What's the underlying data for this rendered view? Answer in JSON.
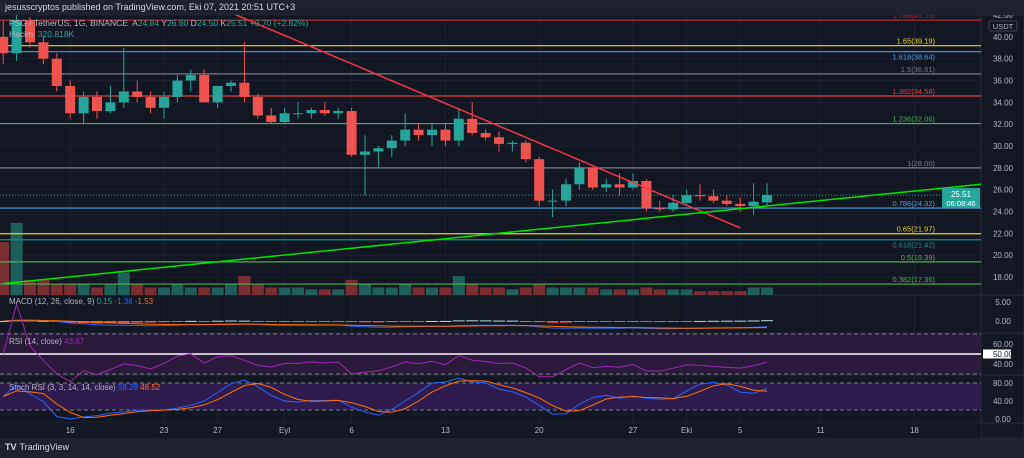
{
  "header": {
    "published": "jesusscryptos published on TradingView.com, Eki 07, 2021 20:51 UTC+3"
  },
  "legend": {
    "symbol": "PSG / TetherUS, 1G, BINANCE",
    "o_label": "A",
    "o": "24.84",
    "h_label": "Y",
    "h": "26.60",
    "l_label": "D",
    "l": "24.50",
    "c_label": "K",
    "c": "25.51",
    "change": "+0.70 (+2.82%)",
    "volume_label": "Hacim",
    "volume": "320.818K"
  },
  "indicators": {
    "macd": {
      "label": "MACD (12, 26, close, 9)",
      "v1": "0.15",
      "v2": "-1.38",
      "v3": "-1.53"
    },
    "rsi": {
      "label": "RSI (14, close)",
      "v": "43.67"
    },
    "stoch": {
      "label": "Stoch RSI (3, 3, 14, 14, close)",
      "k": "59.28",
      "d": "48.52"
    }
  },
  "footer": {
    "brand": "TradingView"
  },
  "colors": {
    "bg": "#131722",
    "up": "#26a69a",
    "down": "#ef5350",
    "red_line": "#f23645",
    "green_line": "#00e600"
  },
  "chart_data": {
    "type": "candlestick",
    "title": "PSG / TetherUS, 1G, BINANCE",
    "currency_label": "USDT",
    "ylim": [
      16.5,
      42.2
    ],
    "price_ticks": [
      "42.00",
      "40.00",
      "38.00",
      "36.00",
      "34.00",
      "32.00",
      "30.00",
      "28.00",
      "26.00",
      "24.00",
      "22.00",
      "20.00",
      "18.00"
    ],
    "last_price": "25.51",
    "countdown": "06:08:46",
    "x_ticks": [
      {
        "label": "16",
        "i": 5
      },
      {
        "label": "23",
        "i": 12
      },
      {
        "label": "27",
        "i": 16
      },
      {
        "label": "Eyl",
        "i": 21
      },
      {
        "label": "6",
        "i": 26
      },
      {
        "label": "13",
        "i": 33
      },
      {
        "label": "20",
        "i": 40
      },
      {
        "label": "27",
        "i": 47
      },
      {
        "label": "Eki",
        "i": 51
      },
      {
        "label": "5",
        "i": 55
      },
      {
        "label": "11",
        "i": 61
      },
      {
        "label": "18",
        "i": 68
      }
    ],
    "ohlc": [
      [
        40,
        41.5,
        37.5,
        38.5
      ],
      [
        38.5,
        42,
        37.8,
        41.5
      ],
      [
        41.5,
        41.8,
        39,
        39.5
      ],
      [
        39.5,
        40,
        37.5,
        38
      ],
      [
        38,
        38.5,
        35,
        35.5
      ],
      [
        35.5,
        36,
        32.5,
        33
      ],
      [
        33,
        35,
        32,
        34.5
      ],
      [
        34.5,
        35,
        32.5,
        33.2
      ],
      [
        33.2,
        35.5,
        33,
        34
      ],
      [
        34,
        39,
        33.5,
        35
      ],
      [
        35,
        36,
        34,
        34.5
      ],
      [
        34.5,
        35,
        33,
        33.5
      ],
      [
        33.5,
        35,
        32.5,
        34.5
      ],
      [
        34.5,
        36.5,
        34,
        36
      ],
      [
        36,
        37,
        35,
        36.5
      ],
      [
        36.5,
        37,
        34,
        34
      ],
      [
        34,
        35.5,
        33.5,
        35.5
      ],
      [
        35.5,
        36,
        35,
        35.8
      ],
      [
        35.8,
        39.5,
        34,
        34.5
      ],
      [
        34.5,
        34.8,
        32.5,
        32.8
      ],
      [
        32.8,
        33.5,
        32,
        32.2
      ],
      [
        32.2,
        33.5,
        32,
        33
      ],
      [
        33,
        34,
        32.5,
        33
      ],
      [
        33,
        33.5,
        32.5,
        33.3
      ],
      [
        33.3,
        34,
        32.8,
        33
      ],
      [
        33,
        33.5,
        32.5,
        33.2
      ],
      [
        33.2,
        33.5,
        29,
        29.2
      ],
      [
        29.2,
        31,
        25.5,
        29.5
      ],
      [
        29.5,
        30,
        28,
        29.8
      ],
      [
        29.8,
        31,
        29,
        30.5
      ],
      [
        30.5,
        33,
        30,
        31.5
      ],
      [
        31.5,
        32,
        30.5,
        31
      ],
      [
        31,
        32,
        30,
        31.5
      ],
      [
        31.5,
        32,
        30,
        30.5
      ],
      [
        30.5,
        33.5,
        30,
        32.5
      ],
      [
        32.5,
        34,
        31,
        31.2
      ],
      [
        31.2,
        31.5,
        30.5,
        30.8
      ],
      [
        30.8,
        31.3,
        29.5,
        30.2
      ],
      [
        30.2,
        30.5,
        29.5,
        30.3
      ],
      [
        30.3,
        30.5,
        28.5,
        28.8
      ],
      [
        28.8,
        29,
        24.5,
        25
      ],
      [
        25,
        26,
        23.5,
        25
      ],
      [
        25,
        27,
        24.5,
        26.5
      ],
      [
        26.5,
        28.5,
        26,
        28
      ],
      [
        28,
        28,
        26,
        26.2
      ],
      [
        26.2,
        27,
        25.8,
        26.5
      ],
      [
        26.5,
        27.5,
        25.5,
        26.2
      ],
      [
        26.2,
        27.5,
        26,
        26.8
      ],
      [
        26.8,
        27,
        24,
        24.3
      ],
      [
        24.3,
        25,
        24,
        24.2
      ],
      [
        24.2,
        25.5,
        24,
        24.8
      ],
      [
        24.8,
        26,
        24.5,
        25.5
      ],
      [
        25.5,
        26.5,
        25,
        25.4
      ],
      [
        25.4,
        26,
        24.8,
        25
      ],
      [
        25,
        25.5,
        24.5,
        24.7
      ],
      [
        24.7,
        25.3,
        24,
        24.5
      ],
      [
        24.5,
        26.6,
        23.7,
        24.9
      ],
      [
        24.84,
        26.6,
        24.5,
        25.51
      ]
    ],
    "volume": [
      14,
      19,
      4,
      4,
      3,
      3,
      3,
      2,
      3,
      6,
      3,
      2,
      2,
      3,
      2,
      2,
      2,
      3,
      5,
      3,
      2,
      2,
      2,
      1.5,
      1.5,
      1.5,
      4,
      3,
      2,
      2,
      3,
      2,
      2,
      2,
      5,
      3,
      2,
      2,
      1.5,
      2,
      3,
      2,
      2,
      2,
      2,
      1.5,
      1.5,
      1.5,
      2,
      1.5,
      1.5,
      1.5,
      1,
      1,
      1,
      1,
      2,
      2
    ],
    "fib_levels": [
      {
        "label": "1.786(41.53)",
        "price": 41.53,
        "color": "#b22833"
      },
      {
        "label": "1.65(39.19)",
        "price": 39.19,
        "color": "#e6d22e"
      },
      {
        "label": "1.618(38.64)",
        "price": 38.64,
        "color": "#4e9be0"
      },
      {
        "label": "1.5(36.61)",
        "price": 36.61,
        "color": "#787b86"
      },
      {
        "label": "1.382(34.58)",
        "price": 34.58,
        "color": "#e0403a"
      },
      {
        "label": "1.236(32.06)",
        "price": 32.06,
        "color": "#4caf50"
      },
      {
        "label": "1(28.00)",
        "price": 28.0,
        "color": "#787b86"
      },
      {
        "label": "0.786(24.32)",
        "price": 24.32,
        "color": "#4e9be0"
      },
      {
        "label": "0.65(21.97)",
        "price": 21.97,
        "color": "#e6d22e"
      },
      {
        "label": "0.618(21.42)",
        "price": 21.42,
        "color": "#138f86"
      },
      {
        "label": "0.5(19.39)",
        "price": 19.39,
        "color": "#4caf50"
      },
      {
        "label": "0.382(17.36)",
        "price": 17.36,
        "color": "#4caf50"
      }
    ],
    "trendlines": [
      {
        "name": "downtrend",
        "color": "#f23645",
        "from": [
          17,
          42.2
        ],
        "to": [
          55,
          22.5
        ]
      },
      {
        "name": "uptrend",
        "color": "#00e600",
        "from": [
          0,
          17.4
        ],
        "to": [
          73,
          26.5
        ]
      }
    ],
    "macd_ticks": [
      "5.00",
      "0.00"
    ],
    "rsi_ticks": [
      "60.00",
      "50.00",
      "40.00"
    ],
    "stoch_ticks": [
      "80.00",
      "40.00",
      "0.00"
    ]
  }
}
